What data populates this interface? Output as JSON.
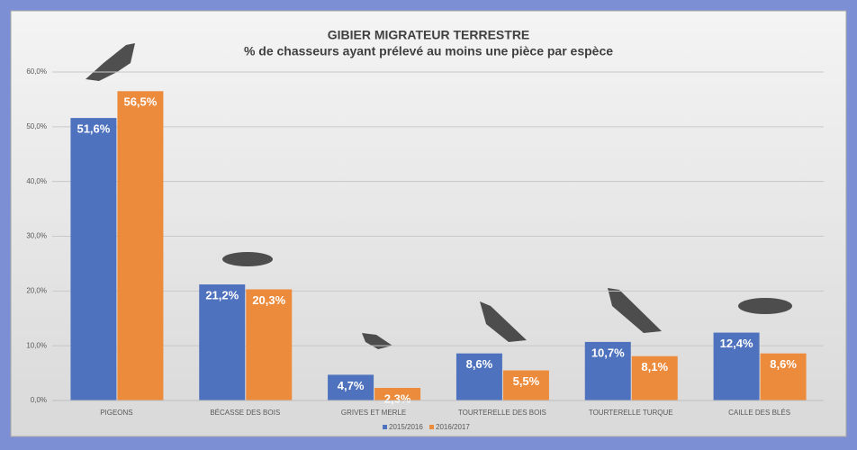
{
  "chart_data": {
    "type": "bar",
    "title": "GIBIER MIGRATEUR TERRESTRE",
    "subtitle": "% de chasseurs ayant prélevé au moins une pièce par espèce",
    "categories": [
      "PIGEONS",
      "BÉCASSE DES BOIS",
      "GRIVES ET MERLE",
      "TOURTERELLE DES BOIS",
      "TOURTERELLE TURQUE",
      "CAILLE DES BLÉS"
    ],
    "series": [
      {
        "name": "2015/2016",
        "color": "#4f72be",
        "values": [
          51.6,
          21.2,
          4.7,
          8.6,
          10.7,
          12.4
        ],
        "value_labels": [
          "51,6%",
          "21,2%",
          "4,7%",
          "8,6%",
          "10,7%",
          "12,4%"
        ]
      },
      {
        "name": "2016/2017",
        "color": "#ed8b3c",
        "values": [
          56.5,
          20.3,
          2.3,
          5.5,
          8.1,
          8.6
        ],
        "value_labels": [
          "56,5%",
          "20,3%",
          "2,3%",
          "5,5%",
          "8,1%",
          "8,6%"
        ]
      }
    ],
    "ylim": [
      0,
      60
    ],
    "yticks": [
      {
        "value": 0,
        "label": "0,0%"
      },
      {
        "value": 10,
        "label": "10,0%"
      },
      {
        "value": 20,
        "label": "20,0%"
      },
      {
        "value": 30,
        "label": "30,0%"
      },
      {
        "value": 40,
        "label": "40,0%"
      },
      {
        "value": 50,
        "label": "50,0%"
      },
      {
        "value": 60,
        "label": "60,0%"
      }
    ],
    "grid": true,
    "legend": "bottom"
  }
}
